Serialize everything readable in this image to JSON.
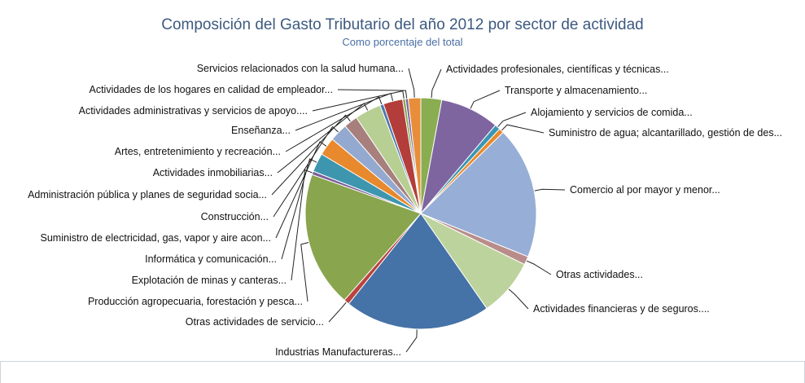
{
  "chart_data": {
    "type": "pie",
    "title": "Composición del Gasto Tributario del año 2012 por sector de actividad",
    "subtitle": "Como porcentaje del total",
    "start_angle_deg": 0,
    "direction": "clockwise",
    "slices": [
      {
        "label": "Actividades profesionales, científicas y técnicas...",
        "value": 3.0,
        "color": "#8aad52"
      },
      {
        "label": "Transporte y almacenamiento...",
        "value": 8.5,
        "color": "#7e65a0"
      },
      {
        "label": "Alojamiento y servicios de comida...",
        "value": 0.8,
        "color": "#3a97b3"
      },
      {
        "label": "Suministro de agua; alcantarillado, gestión de des...",
        "value": 0.7,
        "color": "#e88a2e"
      },
      {
        "label": "Comercio al por mayor y menor...",
        "value": 19.0,
        "color": "#97aed6"
      },
      {
        "label": "Otras actividades...",
        "value": 1.2,
        "color": "#b98c8a"
      },
      {
        "label": "Actividades financieras y de seguros....",
        "value": 8.3,
        "color": "#bdd39d"
      },
      {
        "label": "Industrias Manufactureras...",
        "value": 21.0,
        "color": "#4572a7"
      },
      {
        "label": "Otras actividades de servicio...",
        "value": 0.8,
        "color": "#b9443f"
      },
      {
        "label": "Producción agropecuaria, forestación y pesca...",
        "value": 19.5,
        "color": "#89a54e"
      },
      {
        "label": "Explotación de minas y canteras...",
        "value": 0.5,
        "color": "#7a5c9a"
      },
      {
        "label": "Informática y comunicación...",
        "value": 2.7,
        "color": "#3d96ae"
      },
      {
        "label": "Suministro de electricidad, gas, vapor y aire acon...",
        "value": 2.6,
        "color": "#e8892d"
      },
      {
        "label": "Construcción...",
        "value": 2.6,
        "color": "#93a9cf"
      },
      {
        "label": "Administración pública y planes de seguridad socia...",
        "value": 2.0,
        "color": "#a77f7c"
      },
      {
        "label": "Actividades inmobiliarias...",
        "value": 3.8,
        "color": "#b7cf93"
      },
      {
        "label": "Artes, entretenimiento y recreación...",
        "value": 0.5,
        "color": "#4b78b0"
      },
      {
        "label": "Enseñanza...",
        "value": 2.8,
        "color": "#b33d3a"
      },
      {
        "label": "Actividades administrativas y servicios de apoyo....",
        "value": 0.4,
        "color": "#84a84e"
      },
      {
        "label": "Actividades de los hogares en calidad de empleador...",
        "value": 0.4,
        "color": "#7b61a0"
      },
      {
        "label": "Servicios relacionados con la salud humana...",
        "value": 1.8,
        "color": "#e88e3a"
      }
    ]
  }
}
